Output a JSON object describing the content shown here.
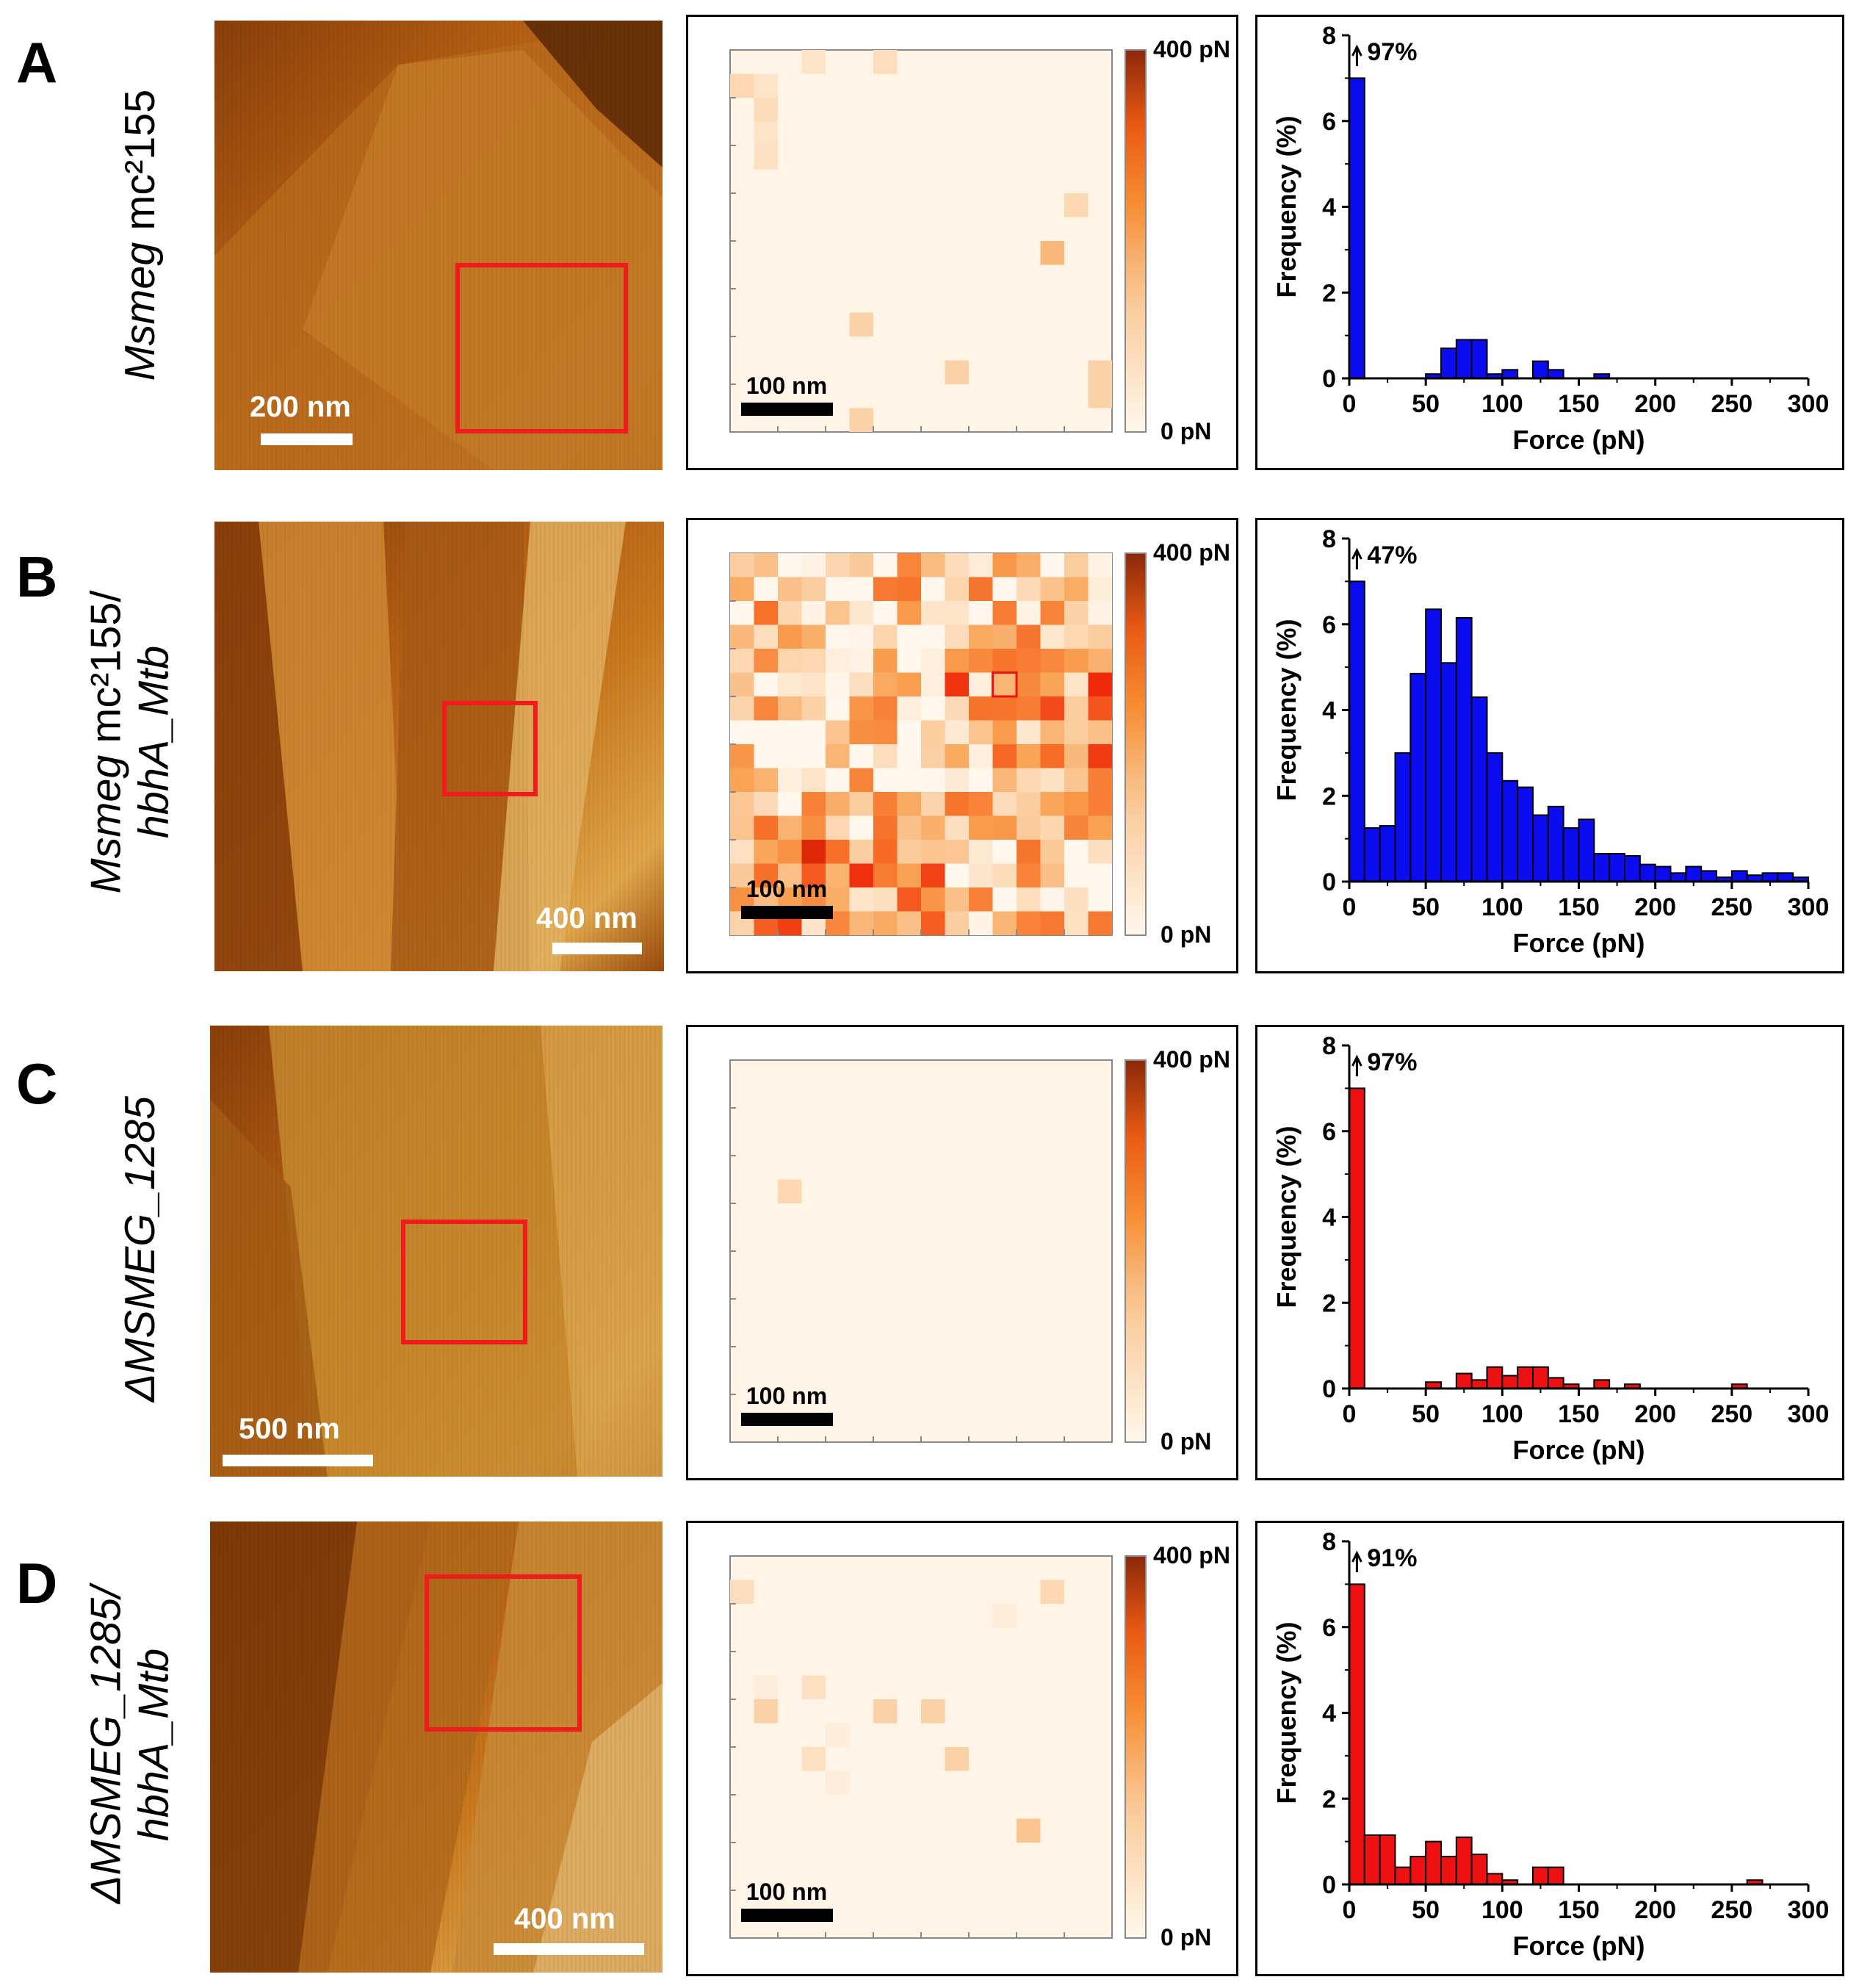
{
  "figure": {
    "panels": [
      {
        "letter": "A",
        "strain_italic": "Msmeg",
        "strain_rest": " mc²155",
        "strain_line2": "",
        "afm_scale_label": "200 nm",
        "map_scale_label": "100 nm",
        "colorbar_max": "400 pN",
        "colorbar_min": "0 pN",
        "map_pixels": [
          [
            0,
            6,
            0.15
          ],
          [
            0,
            3,
            0.12
          ],
          [
            1,
            0,
            0.18
          ],
          [
            1,
            1,
            0.12
          ],
          [
            2,
            1,
            0.16
          ],
          [
            3,
            1,
            0.12
          ],
          [
            4,
            1,
            0.14
          ],
          [
            6,
            14,
            0.18
          ],
          [
            8,
            13,
            0.3
          ],
          [
            11,
            5,
            0.2
          ],
          [
            13,
            9,
            0.2
          ],
          [
            13,
            15,
            0.2
          ],
          [
            14,
            15,
            0.2
          ],
          [
            15,
            5,
            0.2
          ]
        ],
        "map_highlight": null,
        "bar_color": "#0c0cf0"
      },
      {
        "letter": "B",
        "strain_italic": "Msmeg",
        "strain_rest": " mc²155/",
        "strain_line2": "hbhA_Mtb",
        "afm_scale_label": "400 nm",
        "map_scale_label": "100 nm",
        "colorbar_max": "400 pN",
        "colorbar_min": "0 pN",
        "map_grid_seed": 7,
        "map_highlight": [
          5,
          11
        ],
        "bar_color": "#0c0cf0"
      },
      {
        "letter": "C",
        "strain_italic": "ΔMSMEG_1285",
        "strain_rest": "",
        "strain_line2": "",
        "afm_scale_label": "500 nm",
        "map_scale_label": "100 nm",
        "colorbar_max": "400 pN",
        "colorbar_min": "0 pN",
        "map_pixels": [
          [
            5,
            2,
            0.18
          ]
        ],
        "map_highlight": null,
        "bar_color": "#ee1111"
      },
      {
        "letter": "D",
        "strain_italic": "ΔMSMEG_1285/",
        "strain_rest": "",
        "strain_line2": "hbhA_Mtb",
        "afm_scale_label": "400 nm",
        "map_scale_label": "100 nm",
        "colorbar_max": "400 pN",
        "colorbar_min": "0 pN",
        "map_pixels": [
          [
            1,
            0,
            0.15
          ],
          [
            1,
            13,
            0.18
          ],
          [
            2,
            11,
            0.06
          ],
          [
            5,
            1,
            0.06
          ],
          [
            5,
            3,
            0.14
          ],
          [
            6,
            1,
            0.2
          ],
          [
            6,
            6,
            0.2
          ],
          [
            6,
            8,
            0.2
          ],
          [
            7,
            4,
            0.06
          ],
          [
            8,
            3,
            0.14
          ],
          [
            8,
            9,
            0.2
          ],
          [
            9,
            4,
            0.06
          ],
          [
            11,
            12,
            0.25
          ]
        ],
        "map_highlight": null,
        "bar_color": "#ee1111"
      }
    ]
  },
  "chart_data": [
    {
      "type": "bar",
      "panel": "A",
      "xlabel": "Force (pN)",
      "ylabel": "Frequency (%)",
      "xlim": [
        0,
        300
      ],
      "ylim": [
        0,
        8
      ],
      "xticks": [
        0,
        50,
        100,
        150,
        200,
        250,
        300
      ],
      "yticks": [
        0,
        2,
        4,
        6,
        8
      ],
      "bin_width": 10,
      "bin_starts": [
        0,
        50,
        60,
        70,
        80,
        90,
        100,
        120,
        130,
        160
      ],
      "values": [
        7,
        0.1,
        0.7,
        0.9,
        0.9,
        0.1,
        0.2,
        0.4,
        0.2,
        0.1
      ],
      "annotation": "97%",
      "first_bar_true_value_percent": 97
    },
    {
      "type": "bar",
      "panel": "B",
      "xlabel": "Force (pN)",
      "ylabel": "Frequency (%)",
      "xlim": [
        0,
        300
      ],
      "ylim": [
        0,
        8
      ],
      "xticks": [
        0,
        50,
        100,
        150,
        200,
        250,
        300
      ],
      "yticks": [
        0,
        2,
        4,
        6,
        8
      ],
      "bin_width": 10,
      "bin_starts": [
        0,
        10,
        20,
        30,
        40,
        50,
        60,
        70,
        80,
        90,
        100,
        110,
        120,
        130,
        140,
        150,
        160,
        170,
        180,
        190,
        200,
        210,
        220,
        230,
        240,
        250,
        260,
        270,
        280,
        290
      ],
      "values": [
        7,
        1.25,
        1.3,
        3.0,
        4.85,
        6.35,
        5.1,
        6.15,
        4.3,
        3.0,
        2.35,
        2.2,
        1.55,
        1.75,
        1.25,
        1.45,
        0.65,
        0.65,
        0.6,
        0.4,
        0.35,
        0.2,
        0.35,
        0.25,
        0.1,
        0.25,
        0.15,
        0.2,
        0.2,
        0.1
      ],
      "annotation": "47%",
      "first_bar_true_value_percent": 47
    },
    {
      "type": "bar",
      "panel": "C",
      "xlabel": "Force (pN)",
      "ylabel": "Frequency (%)",
      "xlim": [
        0,
        300
      ],
      "ylim": [
        0,
        8
      ],
      "xticks": [
        0,
        50,
        100,
        150,
        200,
        250,
        300
      ],
      "yticks": [
        0,
        2,
        4,
        6,
        8
      ],
      "bin_width": 10,
      "bin_starts": [
        0,
        50,
        70,
        80,
        90,
        100,
        110,
        120,
        130,
        140,
        160,
        180,
        250
      ],
      "values": [
        7,
        0.15,
        0.35,
        0.2,
        0.5,
        0.3,
        0.5,
        0.5,
        0.25,
        0.1,
        0.2,
        0.1,
        0.1
      ],
      "annotation": "97%",
      "first_bar_true_value_percent": 97
    },
    {
      "type": "bar",
      "panel": "D",
      "xlabel": "Force (pN)",
      "ylabel": "Frequency (%)",
      "xlim": [
        0,
        300
      ],
      "ylim": [
        0,
        8
      ],
      "xticks": [
        0,
        50,
        100,
        150,
        200,
        250,
        300
      ],
      "yticks": [
        0,
        2,
        4,
        6,
        8
      ],
      "bin_width": 10,
      "bin_starts": [
        0,
        10,
        20,
        30,
        40,
        50,
        60,
        70,
        80,
        90,
        100,
        120,
        130,
        260
      ],
      "values": [
        7,
        1.15,
        1.15,
        0.4,
        0.65,
        1.0,
        0.65,
        1.1,
        0.7,
        0.25,
        0.1,
        0.4,
        0.4,
        0.1
      ],
      "annotation": "91%",
      "first_bar_true_value_percent": 91
    }
  ]
}
